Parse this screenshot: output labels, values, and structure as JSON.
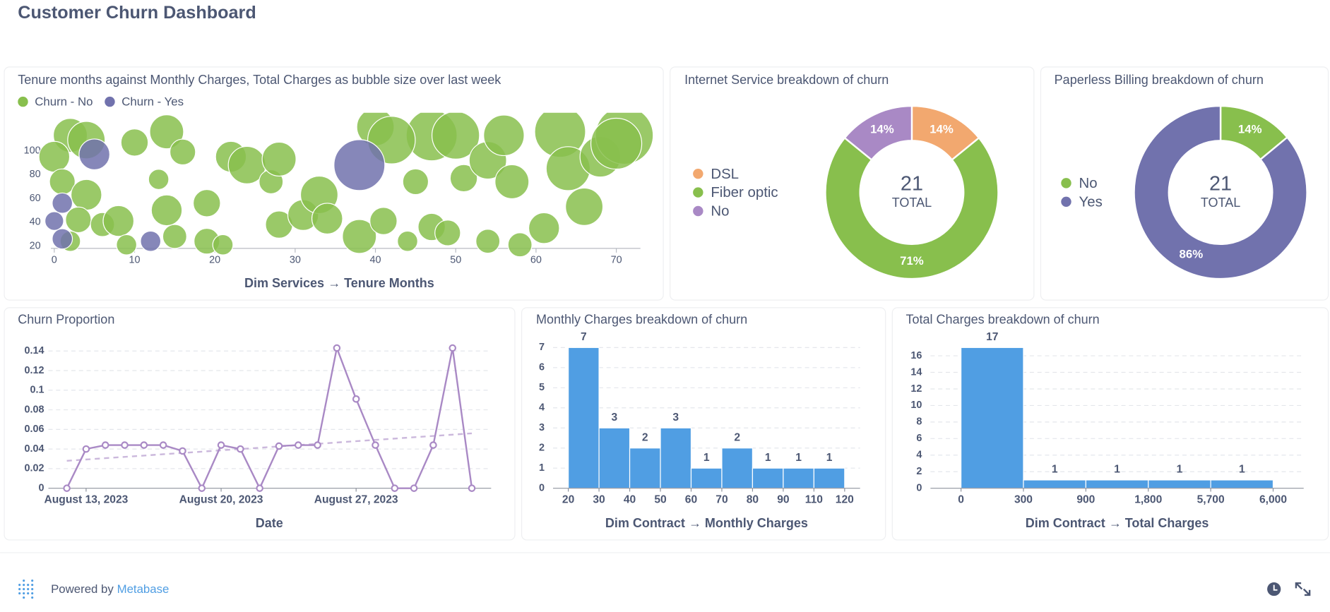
{
  "header": {
    "title": "Customer Churn Dashboard"
  },
  "footer": {
    "powered_by": "Powered by",
    "brand": "Metabase"
  },
  "chart_data": [
    {
      "type": "scatter",
      "title": "Tenure months against Monthly Charges, Total Charges as bubble size over last week",
      "xlabel": "Dim Services → Tenure Months",
      "xlim": [
        -2,
        73
      ],
      "xticks": [
        0,
        10,
        20,
        30,
        40,
        50,
        60,
        70
      ],
      "ylim": [
        18,
        132
      ],
      "yticks": [
        20,
        40,
        60,
        80,
        100
      ],
      "series": [
        {
          "name": "Churn - No",
          "color": "#88bf4d",
          "x": [
            2,
            4,
            0,
            1,
            4,
            3,
            2,
            6,
            8,
            9,
            10,
            14,
            16,
            13,
            14,
            19,
            15,
            19,
            21,
            22,
            24,
            27,
            28,
            28,
            31,
            33,
            34,
            38,
            40,
            41,
            44,
            45,
            47,
            47,
            49,
            50,
            51,
            54,
            54,
            57,
            58,
            61,
            63,
            64,
            66,
            68,
            71,
            70,
            56,
            42
          ],
          "y": [
            113,
            109,
            95,
            74,
            63,
            42,
            24,
            38,
            41,
            21,
            107,
            116,
            99,
            76,
            50,
            56,
            28,
            24,
            21,
            95,
            88,
            74,
            93,
            38,
            46,
            63,
            43,
            28,
            120,
            41,
            24,
            74,
            113,
            36,
            31,
            113,
            77,
            92,
            24,
            74,
            21,
            35,
            116,
            85,
            53,
            95,
            113,
            106,
            113,
            109
          ],
          "size": [
            2800,
            3400,
            2300,
            1600,
            2300,
            1600,
            1000,
            1400,
            2300,
            1000,
            1800,
            2800,
            1600,
            1000,
            2300,
            1800,
            1400,
            1600,
            1000,
            2300,
            3400,
            1400,
            2800,
            1800,
            2300,
            3400,
            2300,
            2800,
            3400,
            1800,
            1000,
            1600,
            6300,
            1800,
            1600,
            5500,
            1800,
            3400,
            1400,
            2800,
            1400,
            2300,
            6300,
            4700,
            3400,
            4000,
            8100,
            6300,
            4000,
            5500
          ]
        },
        {
          "name": "Churn - Yes",
          "color": "#7172ad",
          "x": [
            5,
            1,
            0,
            1,
            12,
            38
          ],
          "y": [
            97,
            56,
            41,
            26,
            24,
            88
          ],
          "size": [
            2300,
            1000,
            850,
            1000,
            1000,
            6300
          ]
        }
      ]
    },
    {
      "type": "pie",
      "title": "Internet Service breakdown of churn",
      "categories": [
        "DSL",
        "Fiber optic",
        "No"
      ],
      "values": [
        14,
        71,
        14
      ],
      "value_labels": [
        "14%",
        "71%",
        "14%"
      ],
      "colors": [
        "#f2a86f",
        "#88bf4d",
        "#a989c5"
      ],
      "total": 21,
      "total_label": "TOTAL"
    },
    {
      "type": "pie",
      "title": "Paperless Billing breakdown of churn",
      "categories": [
        "No",
        "Yes"
      ],
      "values": [
        14,
        86
      ],
      "value_labels": [
        "14%",
        "86%"
      ],
      "colors": [
        "#88bf4d",
        "#7172ad"
      ],
      "total": 21,
      "total_label": "TOTAL"
    },
    {
      "type": "line",
      "title": "Churn Proportion",
      "xlabel": "Date",
      "x": [
        "2023-08-12",
        "2023-08-13",
        "2023-08-14",
        "2023-08-15",
        "2023-08-16",
        "2023-08-17",
        "2023-08-18",
        "2023-08-19",
        "2023-08-20",
        "2023-08-21",
        "2023-08-22",
        "2023-08-23",
        "2023-08-24",
        "2023-08-25",
        "2023-08-26",
        "2023-08-27",
        "2023-08-28",
        "2023-08-29",
        "2023-08-30",
        "2023-08-31",
        "2023-09-01",
        "2023-09-02"
      ],
      "values": [
        0,
        0.04,
        0.044,
        0.044,
        0.044,
        0.044,
        0.038,
        0,
        0.044,
        0.04,
        0,
        0.043,
        0.044,
        0.044,
        0.143,
        0.091,
        0.044,
        0,
        0,
        0.044,
        0.143,
        0
      ],
      "color": "#a989c5",
      "trend": [
        0.028,
        0.056
      ],
      "xlim": [
        "2023-08-11",
        "2023-09-03"
      ],
      "xticks": [
        {
          "value": "2023-08-13",
          "label": "August 13, 2023"
        },
        {
          "value": "2023-08-20",
          "label": "August 20, 2023"
        },
        {
          "value": "2023-08-27",
          "label": "August 27, 2023"
        }
      ],
      "ylim": [
        0,
        0.15
      ],
      "yticks": [
        0,
        0.02,
        0.04,
        0.06,
        0.08,
        0.1,
        0.12,
        0.14
      ],
      "grid": true
    },
    {
      "type": "histogram",
      "title": "Monthly Charges breakdown of churn",
      "xlabel": "Dim Contract → Monthly Charges",
      "bins": [
        20,
        30,
        40,
        50,
        60,
        70,
        80,
        90,
        110,
        120
      ],
      "values": [
        7,
        3,
        2,
        3,
        1,
        2,
        1,
        1,
        1
      ],
      "color": "#509ee3",
      "ylim": [
        0,
        7
      ],
      "yticks": [
        0,
        1,
        2,
        3,
        4,
        5,
        6,
        7
      ],
      "grid": true
    },
    {
      "type": "histogram",
      "title": "Total Charges breakdown of churn",
      "xlabel": "Dim Contract → Total Charges",
      "bins": [
        0,
        300,
        900,
        {
          "value": 1800,
          "label": "1,800"
        },
        {
          "value": 5700,
          "label": "5,700"
        },
        {
          "value": 6000,
          "label": "6,000"
        }
      ],
      "values": [
        17,
        1,
        1,
        1,
        1
      ],
      "color": "#509ee3",
      "ylim": [
        0,
        17
      ],
      "yticks": [
        0,
        2,
        4,
        6,
        8,
        10,
        12,
        14,
        16
      ],
      "grid": true
    }
  ]
}
